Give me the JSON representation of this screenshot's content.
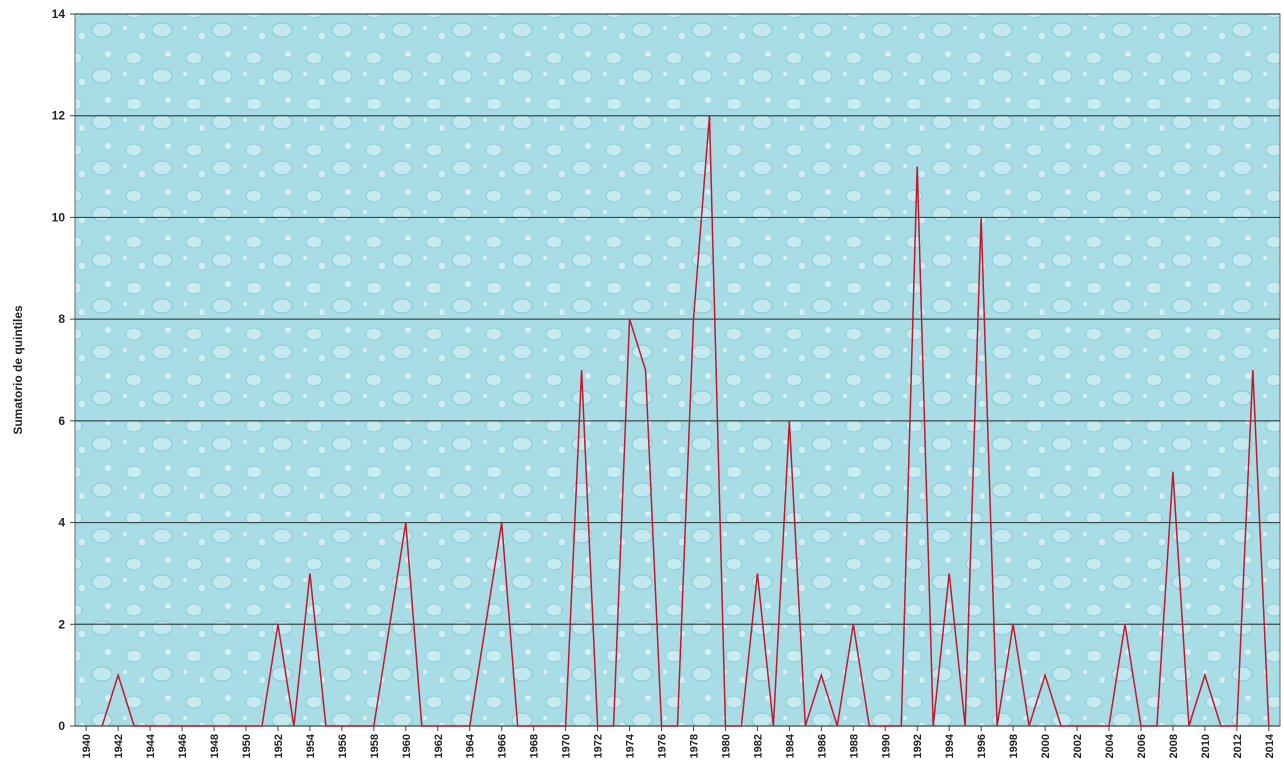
{
  "chart_data": {
    "type": "line",
    "y_label": "Sumatorio de quintiles",
    "x": [
      1941,
      1942,
      1943,
      1944,
      1945,
      1946,
      1947,
      1948,
      1949,
      1950,
      1951,
      1952,
      1953,
      1954,
      1955,
      1956,
      1957,
      1958,
      1959,
      1960,
      1961,
      1962,
      1963,
      1964,
      1965,
      1966,
      1967,
      1968,
      1969,
      1970,
      1971,
      1972,
      1973,
      1974,
      1975,
      1976,
      1977,
      1978,
      1979,
      1980,
      1981,
      1982,
      1983,
      1984,
      1985,
      1986,
      1987,
      1988,
      1989,
      1990,
      1991,
      1992,
      1993,
      1994,
      1995,
      1996,
      1997,
      1998,
      1999,
      2000,
      2001,
      2002,
      2003,
      2004,
      2005,
      2006,
      2007,
      2008,
      2009,
      2010,
      2011,
      2012,
      2013,
      2014
    ],
    "series": [
      {
        "color": "#c0182f",
        "values": [
          0,
          1,
          0,
          0,
          0,
          0,
          0,
          0,
          0,
          0,
          0,
          2,
          0,
          3,
          0,
          0,
          0,
          0,
          2,
          4,
          0,
          0,
          0,
          0,
          2,
          4,
          0,
          0,
          0,
          0,
          7,
          0,
          0,
          8,
          7,
          0,
          0,
          8,
          12,
          0,
          0,
          3,
          0,
          6,
          0,
          1,
          0,
          2,
          0,
          0,
          0,
          11,
          0,
          3,
          0,
          10,
          0,
          2,
          0,
          1,
          0,
          0,
          0,
          0,
          2,
          0,
          0,
          5,
          0,
          1,
          0,
          0,
          7,
          0
        ]
      }
    ],
    "xlim": [
      1939.3,
      2014.7
    ],
    "xticks": [
      1940,
      1942,
      1944,
      1946,
      1948,
      1950,
      1952,
      1954,
      1956,
      1958,
      1960,
      1962,
      1964,
      1966,
      1968,
      1970,
      1972,
      1974,
      1976,
      1978,
      1980,
      1982,
      1984,
      1986,
      1988,
      1990,
      1992,
      1994,
      1996,
      1998,
      2000,
      2002,
      2004,
      2006,
      2008,
      2010,
      2012,
      2014
    ],
    "ylim": [
      0,
      14
    ],
    "yticks": [
      0,
      2,
      4,
      6,
      8,
      10,
      12,
      14
    ],
    "grid": true
  }
}
